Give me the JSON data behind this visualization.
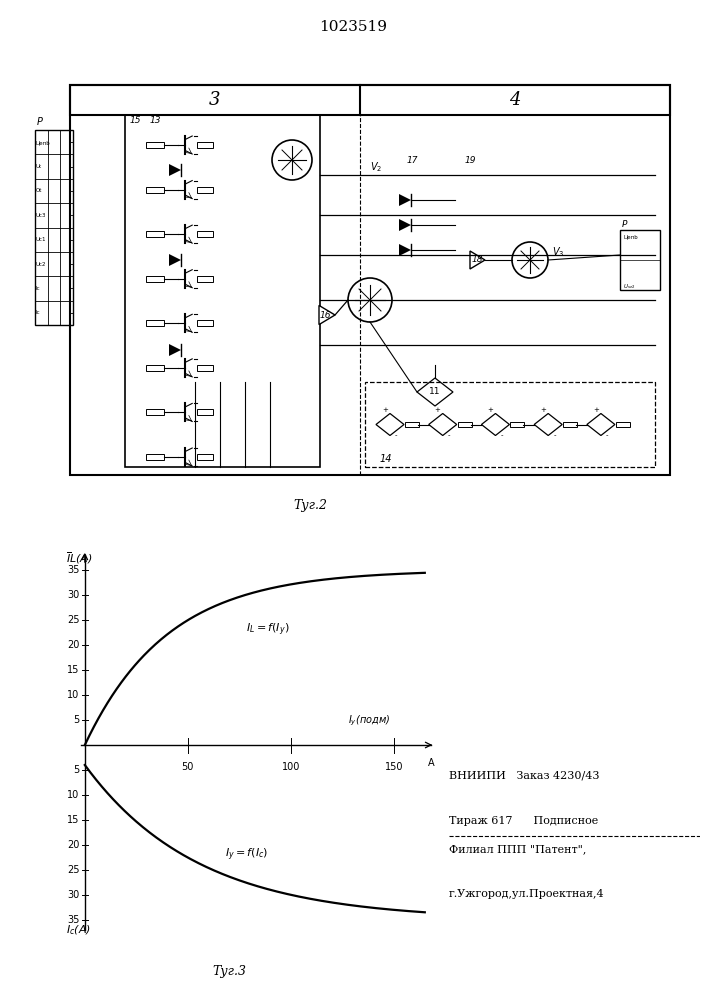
{
  "title": "1023519",
  "fig2_label": "Τуг.2",
  "fig3_label": "Τуг.3",
  "block3_label": "3",
  "block4_label": "4",
  "bottom_text_line1": "ВНИИПИ   Заказ 4230/43",
  "bottom_text_line2": "Тираж 617      Подписное",
  "bottom_text_line3": "Филиал ППП \"Патент\",",
  "bottom_text_line4": "г.Ужгород,ул.Проектная,4",
  "xticks": [
    50,
    100,
    150
  ],
  "yticks_pos": [
    5,
    10,
    15,
    20,
    25,
    30,
    35
  ],
  "yticks_neg": [
    5,
    10,
    15,
    20,
    25,
    30,
    35
  ],
  "x_max": 165,
  "schem_bg": "#f5f3ef"
}
